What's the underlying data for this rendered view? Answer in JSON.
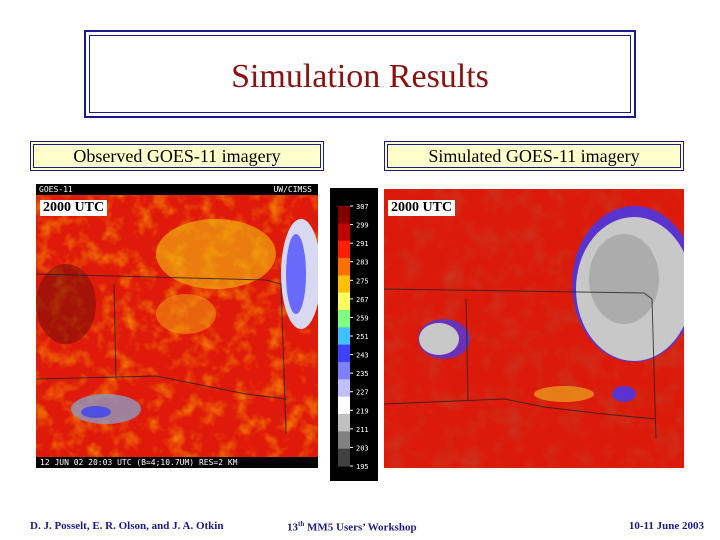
{
  "slide": {
    "title": "Simulation Results",
    "left_label": "Observed GOES-11 imagery",
    "right_label": "Simulated GOES-11 imagery",
    "left_time": "2000 UTC",
    "right_time": "2000 UTC",
    "goes_header_left": "GOES-11",
    "goes_header_right": "UW/CIMSS",
    "goes_footer": "12 JUN 02 20:03 UTC (B=4;10.7UM) RES=2 KM",
    "scale_values": [
      "307",
      "299",
      "291",
      "283",
      "275",
      "267",
      "259",
      "251",
      "243",
      "235",
      "227",
      "219",
      "211",
      "203",
      "195"
    ]
  },
  "footer": {
    "authors": "D. J. Posselt, E. R. Olson, and J. A. Otkin",
    "workshop_num": "13",
    "workshop_sup": "th",
    "workshop_rest": " MM5 Users’ Workshop",
    "dates": "10-11 June 2003"
  },
  "colors": {
    "title": "#8b1010",
    "frame": "#1a1a8c",
    "label_bg": "#ffffcc"
  }
}
